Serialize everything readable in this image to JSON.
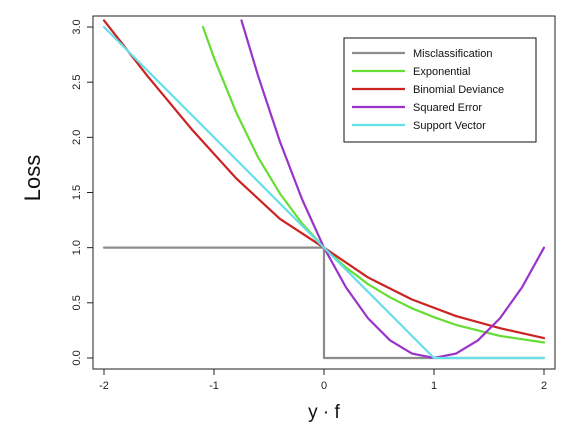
{
  "chart_data": {
    "type": "line",
    "xlabel": "y · f",
    "ylabel": "Loss",
    "xlim": [
      -2.1,
      2.1
    ],
    "ylim": [
      -0.1,
      3.1
    ],
    "xticks": [
      -2,
      -1,
      0,
      1,
      2
    ],
    "yticks": [
      0.0,
      0.5,
      1.0,
      1.5,
      2.0,
      2.5,
      3.0
    ],
    "xtick_labels": [
      "-2",
      "-1",
      "0",
      "1",
      "2"
    ],
    "ytick_labels": [
      "0.0",
      "0.5",
      "1.0",
      "1.5",
      "2.0",
      "2.5",
      "3.0"
    ],
    "legend_position": "top-right",
    "grid": false,
    "series": [
      {
        "name": "Misclassification",
        "color": "#8c8c8c",
        "x": [
          -2.0,
          0.0,
          0.0,
          2.0
        ],
        "y": [
          1.0,
          1.0,
          0.0,
          0.0
        ]
      },
      {
        "name": "Exponential",
        "color": "#66dd33",
        "x": [
          -1.1,
          -1.0,
          -0.8,
          -0.6,
          -0.4,
          -0.2,
          0.0,
          0.2,
          0.4,
          0.6,
          0.8,
          1.0,
          1.2,
          1.4,
          1.6,
          1.8,
          2.0
        ],
        "y": [
          3.0,
          2.72,
          2.23,
          1.82,
          1.49,
          1.22,
          1.0,
          0.82,
          0.67,
          0.55,
          0.45,
          0.37,
          0.3,
          0.25,
          0.2,
          0.17,
          0.14
        ]
      },
      {
        "name": "Binomial Deviance",
        "color": "#cc2222",
        "x": [
          -2.0,
          -1.6,
          -1.2,
          -0.8,
          -0.4,
          0.0,
          0.4,
          0.8,
          1.2,
          1.6,
          2.0
        ],
        "y": [
          3.06,
          2.55,
          2.07,
          1.63,
          1.26,
          1.0,
          0.73,
          0.53,
          0.38,
          0.27,
          0.18
        ]
      },
      {
        "name": "Squared Error",
        "color": "#9933cc",
        "x": [
          -0.75,
          -0.6,
          -0.4,
          -0.2,
          0.0,
          0.2,
          0.4,
          0.6,
          0.8,
          1.0,
          1.2,
          1.4,
          1.6,
          1.8,
          2.0
        ],
        "y": [
          3.06,
          2.56,
          1.96,
          1.44,
          1.0,
          0.64,
          0.36,
          0.16,
          0.04,
          0.0,
          0.04,
          0.16,
          0.36,
          0.64,
          1.0
        ]
      },
      {
        "name": "Support Vector",
        "color": "#66e0e8",
        "x": [
          -2.0,
          0.0,
          1.0,
          2.0
        ],
        "y": [
          3.0,
          1.0,
          0.0,
          0.0
        ]
      }
    ]
  }
}
